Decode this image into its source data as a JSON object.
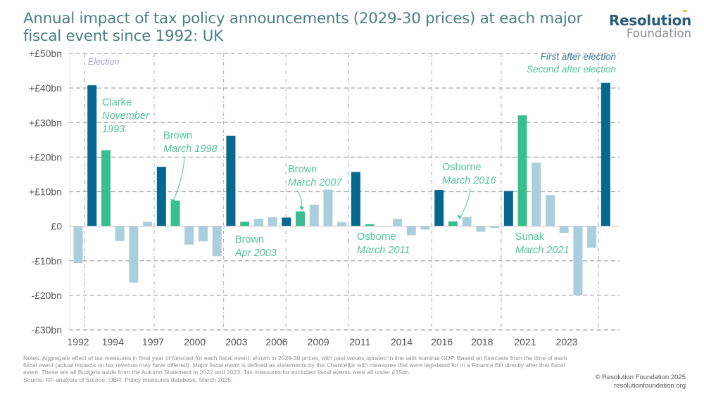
{
  "title": "Annual impact of tax policy announcements (2029-30 prices) at each major fiscal event since 1992: UK",
  "logo": {
    "main": "Resolution",
    "sub": "Foundation"
  },
  "colors": {
    "first_after_election": "#06688f",
    "second_after_election": "#37bf8f",
    "other": "#a9cedd",
    "election_line": "#b9b0d6",
    "grid": "#a8a8a8",
    "axis_text": "#555555",
    "annotation": "#4fc49a",
    "election_label": "#a99fd0",
    "legend_first": "#3f7a95"
  },
  "chart_data": {
    "type": "bar",
    "title": "Annual impact of tax policy announcements (2029-30 prices) at each major fiscal event since 1992: UK",
    "xlabel": "",
    "ylabel": "",
    "ylim": [
      -30,
      50
    ],
    "yticks": [
      50,
      40,
      30,
      20,
      10,
      0,
      -10,
      -20,
      -30
    ],
    "ytick_labels": [
      "+£50bn",
      "+£40bn",
      "+£30bn",
      "+£20bn",
      "+£10bn",
      "£0",
      "-£10bn",
      "-£20bn",
      "-£30bn"
    ],
    "xtick_labels": [
      {
        "label": "1992",
        "index": 0
      },
      {
        "label": "1994",
        "index": 2.5
      },
      {
        "label": "1997",
        "index": 5.4
      },
      {
        "label": "2000",
        "index": 8.4
      },
      {
        "label": "2003",
        "index": 11.4
      },
      {
        "label": "2006",
        "index": 14.3
      },
      {
        "label": "2009",
        "index": 17.3
      },
      {
        "label": "2011",
        "index": 20.3
      },
      {
        "label": "2014",
        "index": 23.3
      },
      {
        "label": "2016",
        "index": 26.2
      },
      {
        "label": "2018",
        "index": 29.1
      },
      {
        "label": "2021",
        "index": 32.2
      },
      {
        "label": "2023",
        "index": 35.2
      }
    ],
    "election_after_index": [
      0,
      5,
      10,
      14.5,
      19,
      25,
      30,
      37
    ],
    "election_label": "Election",
    "grid": true,
    "legend": [
      {
        "label": "First after election",
        "type": "first"
      },
      {
        "label": "Second after election",
        "type": "second"
      }
    ],
    "legend_position": "top-right",
    "bars": [
      {
        "value": -10.7,
        "type": "other"
      },
      {
        "value": 40.8,
        "type": "first"
      },
      {
        "value": 22.0,
        "type": "second"
      },
      {
        "value": -4.3,
        "type": "other"
      },
      {
        "value": -16.3,
        "type": "other"
      },
      {
        "value": 1.3,
        "type": "other"
      },
      {
        "value": 17.2,
        "type": "first"
      },
      {
        "value": 7.4,
        "type": "second"
      },
      {
        "value": -5.3,
        "type": "other"
      },
      {
        "value": -4.4,
        "type": "other"
      },
      {
        "value": -8.7,
        "type": "other"
      },
      {
        "value": 26.2,
        "type": "first"
      },
      {
        "value": 1.3,
        "type": "second"
      },
      {
        "value": 2.2,
        "type": "other"
      },
      {
        "value": 2.6,
        "type": "other"
      },
      {
        "value": 2.5,
        "type": "first"
      },
      {
        "value": 4.3,
        "type": "second"
      },
      {
        "value": 6.2,
        "type": "other"
      },
      {
        "value": 10.6,
        "type": "other"
      },
      {
        "value": 1.2,
        "type": "other"
      },
      {
        "value": 15.7,
        "type": "first"
      },
      {
        "value": 0.6,
        "type": "second"
      },
      {
        "value": 0.1,
        "type": "other"
      },
      {
        "value": 2.1,
        "type": "other"
      },
      {
        "value": -2.6,
        "type": "other"
      },
      {
        "value": -1.0,
        "type": "other"
      },
      {
        "value": 10.5,
        "type": "first"
      },
      {
        "value": 1.4,
        "type": "second"
      },
      {
        "value": 2.7,
        "type": "other"
      },
      {
        "value": -1.6,
        "type": "other"
      },
      {
        "value": -0.5,
        "type": "other"
      },
      {
        "value": 10.2,
        "type": "first"
      },
      {
        "value": 32.1,
        "type": "second"
      },
      {
        "value": 18.4,
        "type": "other"
      },
      {
        "value": 9.0,
        "type": "other"
      },
      {
        "value": -1.9,
        "type": "other"
      },
      {
        "value": -20.0,
        "type": "other"
      },
      {
        "value": -6.2,
        "type": "other"
      },
      {
        "value": 41.5,
        "type": "first"
      }
    ],
    "annotations": [
      {
        "name": "Clarke",
        "date": "November 1993",
        "date_lines": [
          "November",
          "1993"
        ],
        "bar_index": 2,
        "arrow": false
      },
      {
        "name": "Brown",
        "date": "March 1998",
        "date_lines": [
          "March 1998"
        ],
        "bar_index": 7,
        "arrow": true
      },
      {
        "name": "Brown",
        "date": "Apr 2003",
        "date_lines": [
          "Apr 2003"
        ],
        "bar_index": 12,
        "arrow": false
      },
      {
        "name": "Brown",
        "date": "March 2007",
        "date_lines": [
          "March 2007"
        ],
        "bar_index": 16,
        "arrow": true
      },
      {
        "name": "Osborne",
        "date": "March 2011",
        "date_lines": [
          "March 2011"
        ],
        "bar_index": 21,
        "arrow": false
      },
      {
        "name": "Osborne",
        "date": "March 2016",
        "date_lines": [
          "March 2016"
        ],
        "bar_index": 27,
        "arrow": true
      },
      {
        "name": "Sunak",
        "date": "March 2021",
        "date_lines": [
          "March 2021"
        ],
        "bar_index": 32,
        "arrow": false
      }
    ]
  },
  "notes": "Notes: Aggregate effect of tax measures in final year of forecast for each fiscal event, shown in 2029-30 prices, with past values uprated in line with nominal GDP. Based on forecasts from the time of each fiscal event (actual impacts on tax revenue may have differed). Major fiscal event is defined as statements by the Chancellor with measures that were legislated for in a Finance Bill directly after that fiscal event. These are all Budgets aside from the Autumn Statement in 2022 and 2023. Tax measures for excluded fiscal events were all under £15bn.",
  "source": "Source: RF analysis of Source: OBR, Policy measures database, March 2025.",
  "copyright": "© Resolution Foundation 2025",
  "website": "resolutionfoundation.org"
}
